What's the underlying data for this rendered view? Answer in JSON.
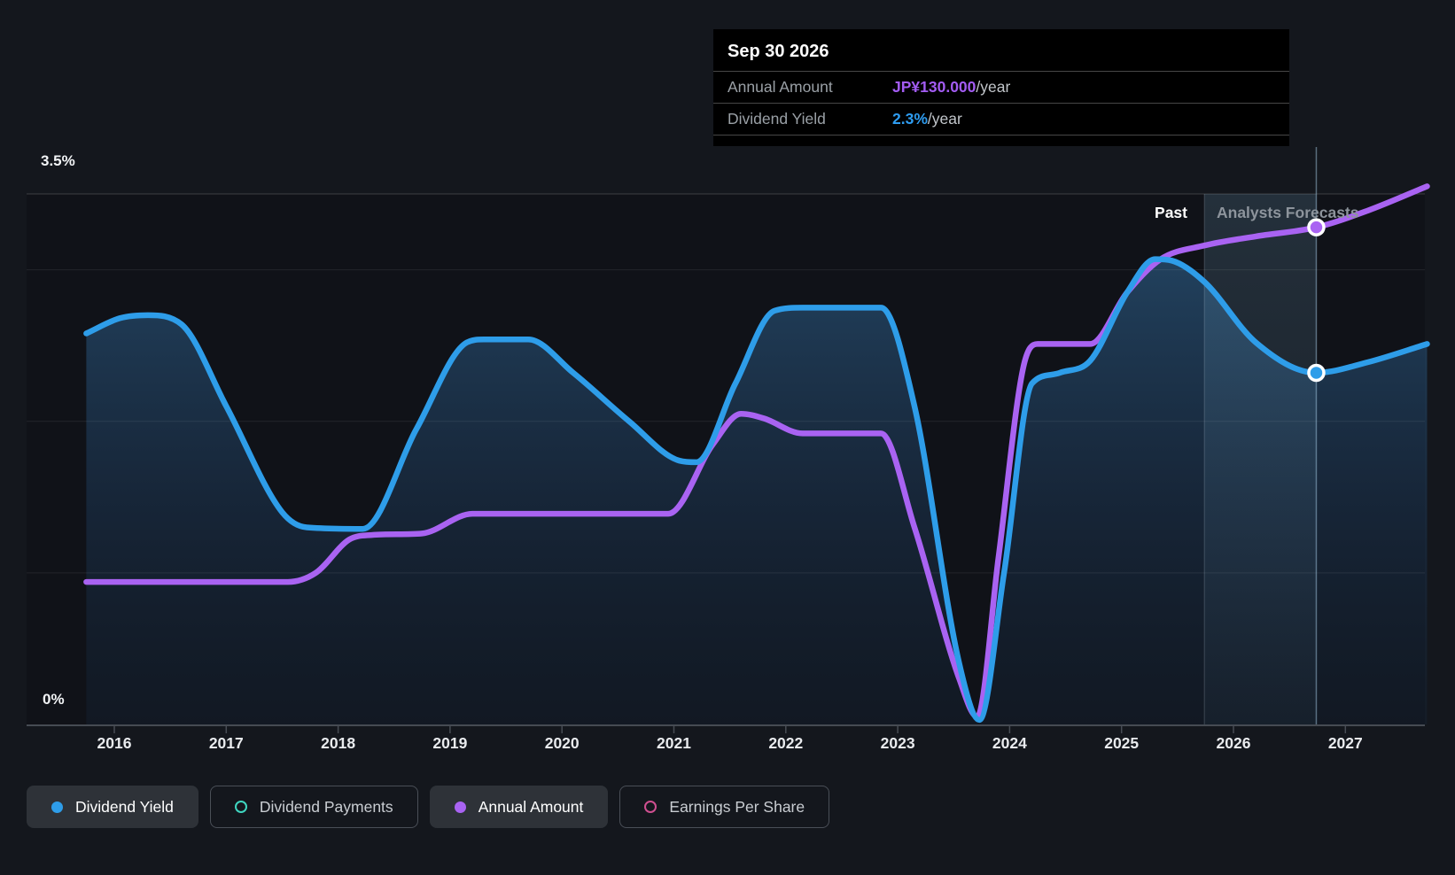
{
  "tooltip": {
    "title": "Sep 30 2026",
    "rows": [
      {
        "label": "Annual Amount",
        "value": "JP¥130.000",
        "suffix": "/year",
        "value_color": "#a35cf3"
      },
      {
        "label": "Dividend Yield",
        "value": "2.3%",
        "suffix": "/year",
        "value_color": "#2e9cf0"
      }
    ]
  },
  "annotations": {
    "past_label": "Past",
    "forecast_label": "Analysts Forecasts"
  },
  "legend": {
    "items": [
      {
        "label": "Dividend Yield",
        "color": "#2e9de9",
        "style": "filled"
      },
      {
        "label": "Dividend Payments",
        "color": "#3fd6c0",
        "style": "outline"
      },
      {
        "label": "Annual Amount",
        "color": "#a963f2",
        "style": "filled"
      },
      {
        "label": "Earnings Per Share",
        "color": "#cf4f90",
        "style": "outline"
      }
    ]
  },
  "chart_data": {
    "type": "area",
    "title": "Dividend yield and payments history with analyst forecasts",
    "x_axis": {
      "ticks": [
        2016,
        2017,
        2018,
        2019,
        2020,
        2021,
        2022,
        2023,
        2024,
        2025,
        2026,
        2027
      ]
    },
    "y_axis": {
      "range": [
        0,
        3.5
      ],
      "gridlines": [
        3.5,
        3,
        2,
        1
      ],
      "labels": [
        {
          "value": 3.5,
          "text": "3.5%"
        },
        {
          "value": 0,
          "text": "0%"
        }
      ]
    },
    "x_range": [
      2015.75,
      2027.73
    ],
    "divider_x": 2025.74,
    "highlight_band": [
      2025.74,
      2026.74
    ],
    "crosshair_x": 2026.74,
    "hover_point": {
      "date": "Sep 30 2026",
      "annual_amount": "JP¥130.000/year",
      "dividend_yield_pct": 2.3
    },
    "series": [
      {
        "name": "Annual Amount",
        "color": "#a963f2",
        "draw": "line",
        "unit": "visual % scale (JP¥ value shown in tooltip)",
        "marker": {
          "x": 2026.74,
          "y": 3.28
        },
        "points": [
          [
            2015.75,
            0.94
          ],
          [
            2017.55,
            0.94
          ],
          [
            2017.8,
            1.0
          ],
          [
            2018.1,
            1.22
          ],
          [
            2018.3,
            1.25
          ],
          [
            2018.75,
            1.26
          ],
          [
            2019.2,
            1.39
          ],
          [
            2020.95,
            1.39
          ],
          [
            2021.35,
            1.85
          ],
          [
            2021.6,
            2.05
          ],
          [
            2021.8,
            2.02
          ],
          [
            2022.15,
            1.92
          ],
          [
            2022.85,
            1.92
          ],
          [
            2023.15,
            1.3
          ],
          [
            2023.55,
            0.3
          ],
          [
            2023.71,
            0.05
          ],
          [
            2023.9,
            1.1
          ],
          [
            2024.12,
            2.35
          ],
          [
            2024.25,
            2.51
          ],
          [
            2024.72,
            2.51
          ],
          [
            2025.05,
            2.85
          ],
          [
            2025.35,
            3.07
          ],
          [
            2025.74,
            3.16
          ],
          [
            2026.2,
            3.22
          ],
          [
            2026.74,
            3.28
          ],
          [
            2027.2,
            3.39
          ],
          [
            2027.73,
            3.55
          ]
        ]
      },
      {
        "name": "Dividend Yield",
        "color": "#2e9de9",
        "draw": "area",
        "unit": "%",
        "marker": {
          "x": 2026.74,
          "y": 2.32
        },
        "points": [
          [
            2015.75,
            2.58
          ],
          [
            2016.05,
            2.68
          ],
          [
            2016.3,
            2.7
          ],
          [
            2016.6,
            2.64
          ],
          [
            2017.0,
            2.1
          ],
          [
            2017.5,
            1.4
          ],
          [
            2017.72,
            1.3
          ],
          [
            2018.22,
            1.29
          ],
          [
            2018.7,
            1.95
          ],
          [
            2019.15,
            2.52
          ],
          [
            2019.3,
            2.54
          ],
          [
            2019.7,
            2.54
          ],
          [
            2020.1,
            2.32
          ],
          [
            2020.6,
            2.0
          ],
          [
            2021.05,
            1.74
          ],
          [
            2021.2,
            1.73
          ],
          [
            2021.55,
            2.25
          ],
          [
            2021.9,
            2.73
          ],
          [
            2022.15,
            2.75
          ],
          [
            2022.85,
            2.75
          ],
          [
            2023.15,
            2.1
          ],
          [
            2023.55,
            0.4
          ],
          [
            2023.73,
            0.03
          ],
          [
            2023.95,
            1.0
          ],
          [
            2024.2,
            2.25
          ],
          [
            2024.45,
            2.32
          ],
          [
            2024.72,
            2.4
          ],
          [
            2025.05,
            2.85
          ],
          [
            2025.3,
            3.07
          ],
          [
            2025.45,
            3.06
          ],
          [
            2025.74,
            2.92
          ],
          [
            2026.2,
            2.52
          ],
          [
            2026.74,
            2.32
          ],
          [
            2027.2,
            2.39
          ],
          [
            2027.73,
            2.51
          ]
        ]
      }
    ]
  }
}
